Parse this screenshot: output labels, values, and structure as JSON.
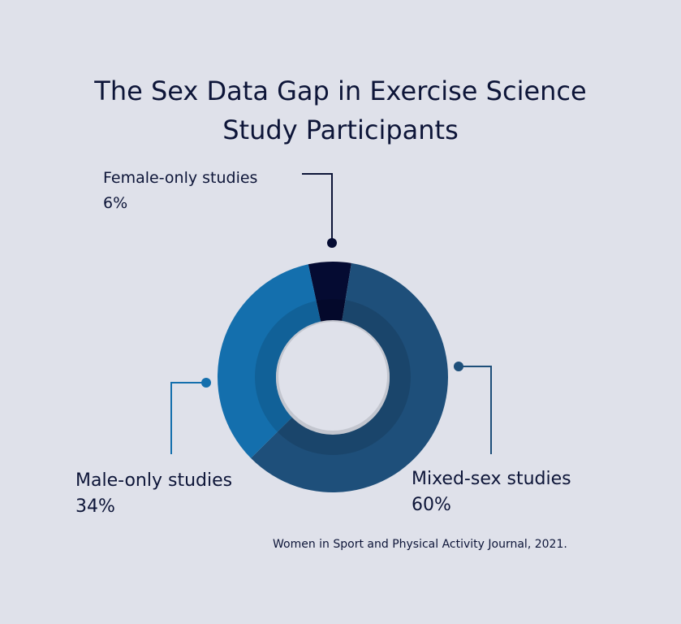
{
  "chart_data": {
    "type": "pie",
    "title": "The Sex Data Gap in Exercise Science Study Participants",
    "title_lines": [
      "The Sex Data Gap in Exercise Science",
      "Study Participants"
    ],
    "slices": [
      {
        "name": "Female-only studies",
        "value": 6,
        "label": "6%",
        "color": "#050b32"
      },
      {
        "name": "Mixed-sex studies",
        "value": 60,
        "label": "60%",
        "color": "#1e4f7a"
      },
      {
        "name": "Male-only studies",
        "value": 34,
        "label": "34%",
        "color": "#146fad"
      }
    ],
    "source": "Women in Sport and Physical Activity Journal, 2021."
  }
}
